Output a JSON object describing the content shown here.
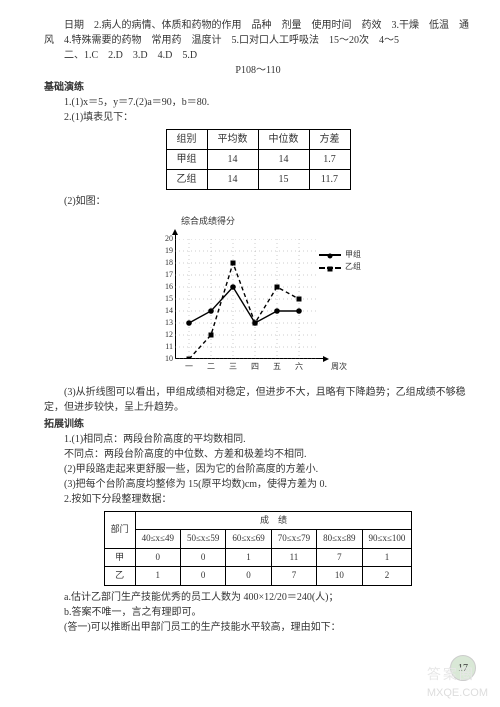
{
  "top": {
    "line1": "日期　2.病人的病情、体质和药物的作用　品种　剂量　使用时间　药效　3.干燥　低温　通风　4.特殊需要的药物　常用药　温度计　5.口对口人工呼吸法　15～20次　4～5",
    "line2": "二、1.C　2.D　3.D　4.D　5.D",
    "page_marker": "P108～110"
  },
  "basis": {
    "label": "基础演练",
    "p1": "1.(1)x＝5，y＝7.(2)a＝90，b＝80.",
    "p2": "2.(1)填表见下：",
    "table1": {
      "headers": [
        "组别",
        "平均数",
        "中位数",
        "方差"
      ],
      "rows": [
        [
          "甲组",
          "14",
          "14",
          "1.7"
        ],
        [
          "乙组",
          "14",
          "15",
          "11.7"
        ]
      ]
    },
    "p3": "(2)如图：",
    "chart": {
      "title": "综合成绩得分",
      "legend": [
        "甲组",
        "乙组"
      ],
      "xticks": [
        "一",
        "二",
        "三",
        "四",
        "五",
        "六"
      ],
      "xlabel": "周次",
      "ymin": 10,
      "ymax": 20,
      "jia": [
        13,
        14,
        16,
        13,
        14,
        14
      ],
      "yi": [
        10,
        12,
        18,
        13,
        16,
        15
      ]
    },
    "p4": "(3)从折线图可以看出，甲组成绩相对稳定，但进步不大，且略有下降趋势；乙组成绩不够稳定，但进步较快，呈上升趋势。"
  },
  "expand": {
    "label": "拓展训练",
    "p1a": "1.(1)相同点：两段台阶高度的平均数相同.",
    "p1b": "不同点：两段台阶高度的中位数、方差和极差均不相同.",
    "p2": "(2)甲段路走起来更舒服一些，因为它的台阶高度的方差小.",
    "p3": "(3)把每个台阶高度均整修为 15(原平均数)cm，使得方差为 0.",
    "p4": "2.按如下分段整理数据：",
    "table2": {
      "dept": "部门",
      "score": "成　绩",
      "ranges": [
        "40≤x≤49",
        "50≤x≤59",
        "60≤x≤69",
        "70≤x≤79",
        "80≤x≤89",
        "90≤x≤100"
      ],
      "rows": [
        {
          "label": "甲",
          "vals": [
            "0",
            "0",
            "1",
            "11",
            "7",
            "1"
          ]
        },
        {
          "label": "乙",
          "vals": [
            "1",
            "0",
            "0",
            "7",
            "10",
            "2"
          ]
        }
      ]
    },
    "pa": "a.估计乙部门生产技能优秀的员工人数为 400×12/20＝240(人)；",
    "pb": "b.答案不唯一，言之有理即可。",
    "pb2": "(答一)可以推断出甲部门员工的生产技能水平较高，理由如下："
  },
  "pagenum": "17",
  "watermark_top": "答案圈",
  "watermark_bottom": "MXQE.COM"
}
